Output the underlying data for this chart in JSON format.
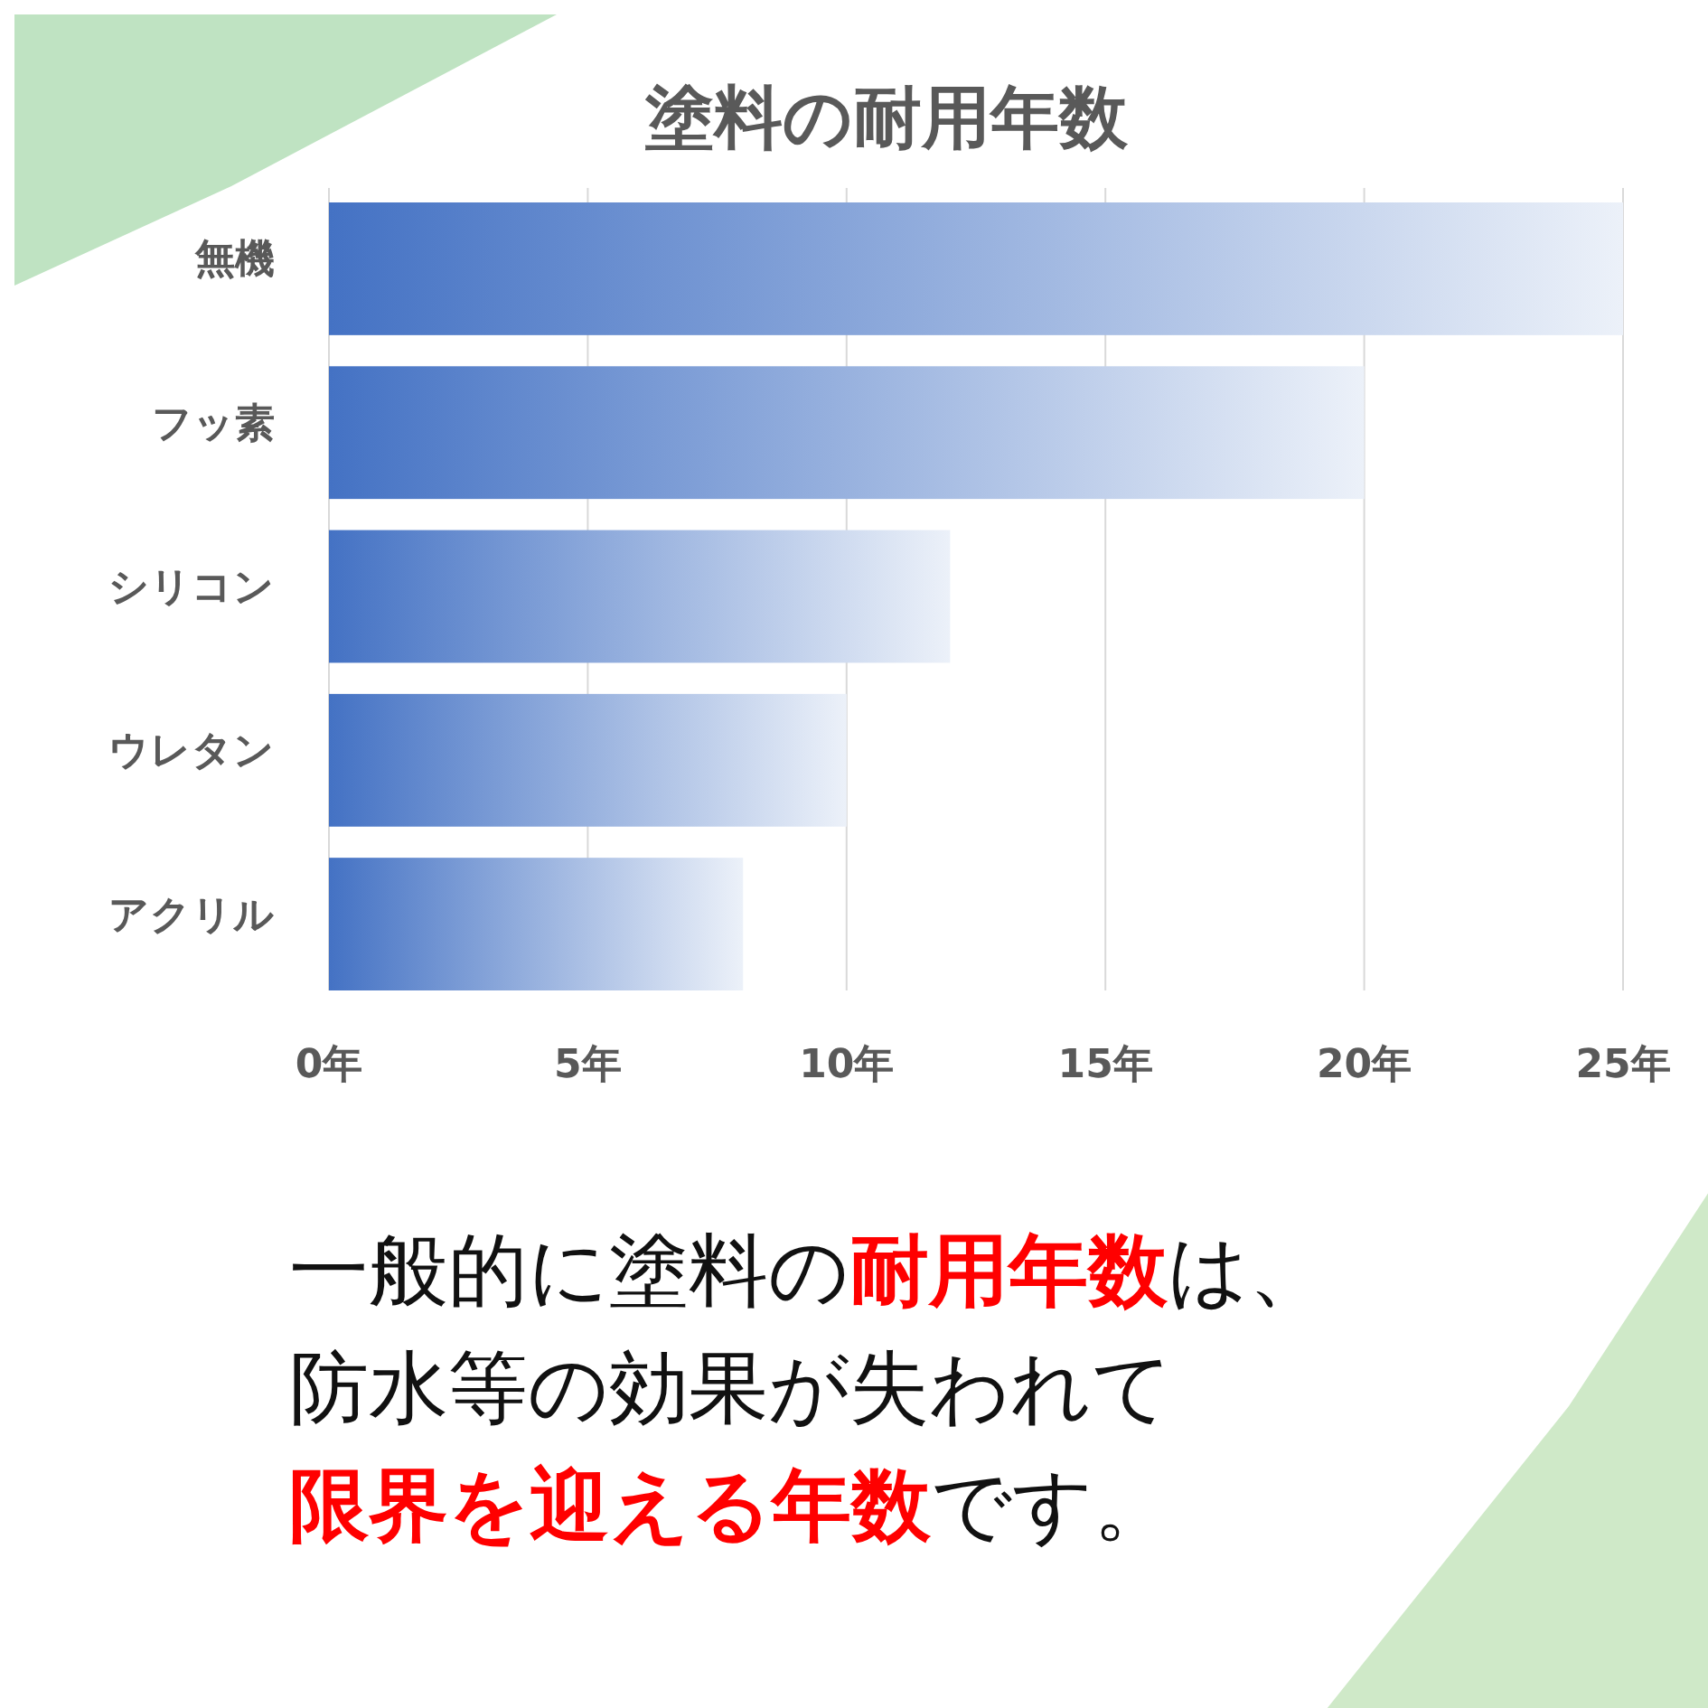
{
  "chart_data": {
    "type": "bar",
    "orientation": "horizontal",
    "title": "塗料の耐用年数",
    "categories": [
      "無機",
      "フッ素",
      "シリコン",
      "ウレタン",
      "アクリル"
    ],
    "values": [
      25,
      20,
      12,
      10,
      8
    ],
    "color": "#4472c4",
    "xlim": [
      0,
      25
    ],
    "xticks": [
      {
        "value": 0,
        "label": "0年"
      },
      {
        "value": 5,
        "label": "5年"
      },
      {
        "value": 10,
        "label": "10年"
      },
      {
        "value": 15,
        "label": "15年"
      },
      {
        "value": 20,
        "label": "20年"
      },
      {
        "value": 25,
        "label": "25年"
      }
    ],
    "grid": "x",
    "annotations": [
      "一般的に塗料の耐用年数は、",
      "防水等の効果が失われて",
      "限界を迎える年数です。"
    ]
  }
}
